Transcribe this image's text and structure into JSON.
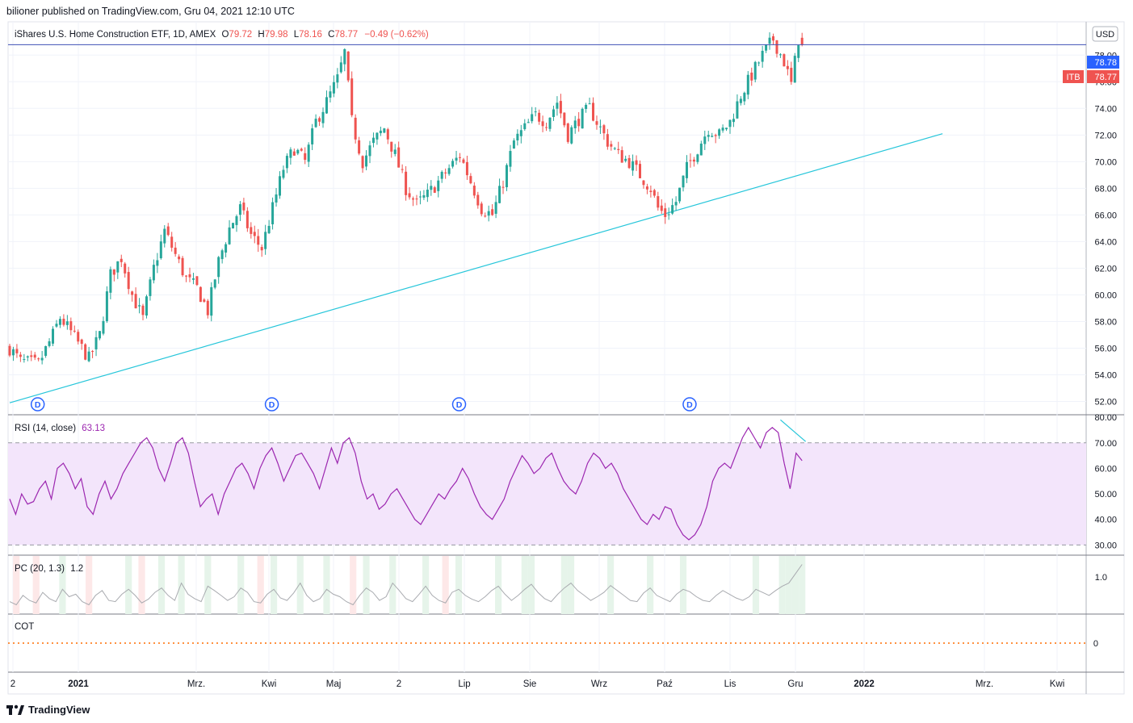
{
  "header": {
    "published": "bilioner published on TradingView.com, Gru 04, 2021 12:10 UTC"
  },
  "footer": {
    "brand": "TradingView",
    "logo_icon": "tradingview-logo-icon"
  },
  "legend": {
    "symbol": "iShares U.S. Home Construction ETF, 1D, AMEX",
    "o_label": "O",
    "o_value": "79.72",
    "h_label": "H",
    "h_value": "79.98",
    "l_label": "L",
    "l_value": "78.16",
    "c_label": "C",
    "c_value": "78.77",
    "change": "−0.49 (−0.62%)"
  },
  "currency_button": "USD",
  "price_labels": {
    "current": "78.78",
    "symbol_tag": "ITB",
    "last": "78.77"
  },
  "colors": {
    "up": "#26a69a",
    "down": "#ef5350",
    "trendline": "#26c6da",
    "rsi_line": "#9c27b0",
    "rsi_band": "#f3e5fb",
    "pc_green": "#e6f4ea",
    "pc_red": "#fde8e8",
    "cot_line": "#ff6d00",
    "price_line": "#2962ff",
    "price_line_dark": "#3f51b5"
  },
  "dividend_marker_label": "D",
  "chart_data": [
    {
      "type": "candlestick",
      "title": "iShares U.S. Home Construction ETF",
      "interval": "1D",
      "ylim": [
        51,
        80.5
      ],
      "y_ticks": [
        "52.00",
        "54.00",
        "56.00",
        "58.00",
        "60.00",
        "62.00",
        "64.00",
        "66.00",
        "68.00",
        "70.00",
        "72.00",
        "74.00",
        "76.00",
        "78.00"
      ],
      "x_ticks": [
        "2",
        "2021",
        "Mrz.",
        "Kwi",
        "Maj",
        "2",
        "Lip",
        "Sie",
        "Wrz",
        "Paź",
        "Lis",
        "Gru",
        "2022",
        "Mrz.",
        "Kwi"
      ],
      "close_path": [
        [
          0,
          56.0
        ],
        [
          3,
          55.0
        ],
        [
          8,
          54.8
        ],
        [
          12,
          57.0
        ],
        [
          14,
          58.3
        ],
        [
          17,
          57.2
        ],
        [
          20,
          56.0
        ],
        [
          22,
          55.2
        ],
        [
          25,
          57.0
        ],
        [
          28,
          61.5
        ],
        [
          31,
          62.8
        ],
        [
          34,
          60.0
        ],
        [
          37,
          58.2
        ],
        [
          40,
          62.0
        ],
        [
          43,
          64.8
        ],
        [
          46,
          63.0
        ],
        [
          49,
          61.2
        ],
        [
          52,
          60.5
        ],
        [
          55,
          58.8
        ],
        [
          58,
          62.5
        ],
        [
          61,
          65.0
        ],
        [
          64,
          66.5
        ],
        [
          67,
          64.5
        ],
        [
          70,
          63.5
        ],
        [
          73,
          66.5
        ],
        [
          76,
          69.5
        ],
        [
          79,
          71.0
        ],
        [
          82,
          70.0
        ],
        [
          85,
          73.0
        ],
        [
          88,
          74.5
        ],
        [
          91,
          76.2
        ],
        [
          93,
          78.2
        ],
        [
          95,
          73.0
        ],
        [
          98,
          70.0
        ],
        [
          101,
          71.5
        ],
        [
          104,
          72.5
        ],
        [
          107,
          70.5
        ],
        [
          110,
          68.0
        ],
        [
          113,
          66.8
        ],
        [
          116,
          67.5
        ],
        [
          119,
          68.5
        ],
        [
          122,
          69.5
        ],
        [
          125,
          70.5
        ],
        [
          128,
          68.5
        ],
        [
          131,
          66.5
        ],
        [
          134,
          66.0
        ],
        [
          137,
          68.5
        ],
        [
          140,
          71.5
        ],
        [
          143,
          72.5
        ],
        [
          146,
          73.5
        ],
        [
          149,
          73.0
        ],
        [
          152,
          74.5
        ],
        [
          155,
          72.0
        ],
        [
          158,
          73.2
        ],
        [
          161,
          74.0
        ],
        [
          163,
          73.0
        ],
        [
          166,
          71.5
        ],
        [
          169,
          70.5
        ],
        [
          172,
          70.0
        ],
        [
          175,
          69.0
        ],
        [
          178,
          68.0
        ],
        [
          180,
          66.5
        ],
        [
          182,
          66.0
        ],
        [
          185,
          67.0
        ],
        [
          188,
          69.5
        ],
        [
          191,
          71.0
        ],
        [
          194,
          72.5
        ],
        [
          197,
          72.0
        ],
        [
          200,
          73.0
        ],
        [
          203,
          75.0
        ],
        [
          206,
          76.5
        ],
        [
          209,
          78.0
        ],
        [
          212,
          79.2
        ],
        [
          215,
          77.5
        ],
        [
          217,
          75.8
        ],
        [
          219,
          79.2
        ],
        [
          220,
          78.77
        ]
      ],
      "trendline": {
        "x": [
          0,
          259
        ],
        "y": [
          51.9,
          72.1
        ],
        "color": "#26c6da"
      },
      "price_line_value": 78.78,
      "dividend_marker_x": [
        8,
        73,
        125,
        189
      ]
    },
    {
      "type": "line",
      "name": "RSI",
      "label": "RSI (14, close)",
      "value": "63.13",
      "ylim": [
        26,
        81
      ],
      "band": [
        30,
        70
      ],
      "y_ticks": [
        "30.00",
        "40.00",
        "50.00",
        "60.00",
        "70.00",
        "80.00"
      ],
      "x_range": [
        0,
        220
      ],
      "values": [
        48,
        42,
        50,
        46,
        47,
        52,
        55,
        48,
        60,
        62,
        58,
        52,
        56,
        45,
        42,
        50,
        55,
        48,
        52,
        58,
        62,
        66,
        70,
        72,
        68,
        60,
        55,
        62,
        70,
        72,
        66,
        55,
        45,
        48,
        50,
        42,
        50,
        55,
        60,
        62,
        58,
        52,
        60,
        65,
        68,
        62,
        55,
        60,
        65,
        66,
        62,
        58,
        52,
        60,
        68,
        62,
        70,
        72,
        66,
        55,
        48,
        50,
        44,
        46,
        50,
        52,
        48,
        44,
        40,
        38,
        42,
        46,
        50,
        48,
        52,
        55,
        60,
        56,
        50,
        45,
        42,
        40,
        44,
        48,
        55,
        60,
        65,
        62,
        58,
        60,
        64,
        66,
        60,
        55,
        52,
        50,
        55,
        62,
        66,
        64,
        60,
        62,
        58,
        52,
        48,
        44,
        40,
        38,
        42,
        40,
        45,
        44,
        38,
        34,
        32,
        34,
        38,
        45,
        55,
        60,
        62,
        60,
        66,
        72,
        76,
        72,
        68,
        74,
        76,
        74,
        62,
        52,
        66,
        63
      ]
    },
    {
      "type": "line",
      "name": "PC",
      "label": "PC (20, 1.3)",
      "value": "1.2",
      "y_ticks": [
        "1.0"
      ],
      "ylim": [
        0.4,
        1.35
      ],
      "x_range": [
        0,
        220
      ],
      "values": [
        0.6,
        0.55,
        0.7,
        0.62,
        0.58,
        0.75,
        0.65,
        0.6,
        0.8,
        0.68,
        0.72,
        0.6,
        0.55,
        0.7,
        0.78,
        0.62,
        0.6,
        0.72,
        0.8,
        0.7,
        0.58,
        0.64,
        0.75,
        0.82,
        0.7,
        0.62,
        0.9,
        0.72,
        0.65,
        0.6,
        0.85,
        0.78,
        0.7,
        0.62,
        0.68,
        0.82,
        0.75,
        0.6,
        0.58,
        0.72,
        0.8,
        0.66,
        0.62,
        0.74,
        0.9,
        0.7,
        0.6,
        0.65,
        0.8,
        0.72,
        0.68,
        0.6,
        0.55,
        0.7,
        0.82,
        0.75,
        0.62,
        0.68,
        0.9,
        0.78,
        0.65,
        0.6,
        0.72,
        0.85,
        0.7,
        0.62,
        0.58,
        0.75,
        0.8,
        0.7,
        0.64,
        0.6,
        0.68,
        0.78,
        0.85,
        0.72,
        0.62,
        0.7,
        0.8,
        0.88,
        0.75,
        0.65,
        0.6,
        0.72,
        0.82,
        0.9,
        0.78,
        0.7,
        0.62,
        0.68,
        0.75,
        0.86,
        0.78,
        0.7,
        0.62,
        0.6,
        0.74,
        0.82,
        0.7,
        0.65,
        0.6,
        0.72,
        0.8,
        0.76,
        0.68,
        0.62,
        0.6,
        0.7,
        0.78,
        0.72,
        0.66,
        0.62,
        0.68,
        0.8,
        0.75,
        0.7,
        0.78,
        0.85,
        0.9,
        1.05,
        1.2
      ]
    },
    {
      "type": "line",
      "name": "COT",
      "label": "COT",
      "y_ticks": [
        "0"
      ],
      "values": [
        0,
        0
      ]
    }
  ]
}
